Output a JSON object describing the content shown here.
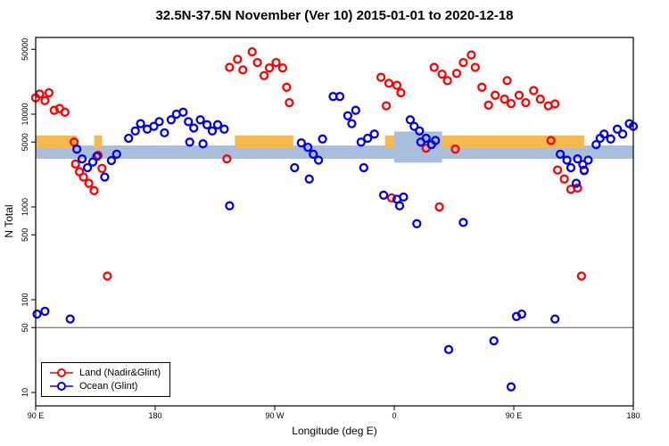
{
  "title": "32.5N-37.5N November (Ver 10)   2015-01-01 to 2020-12-18",
  "legend": {
    "items": [
      {
        "label": "Land (Nadir&Glint)",
        "color": "#ff0000"
      },
      {
        "label": "Ocean (Glint)",
        "color": "#0000ee"
      }
    ]
  },
  "chart_data": {
    "type": "scatter",
    "title": "32.5N-37.5N November (Ver 10)   2015-01-01 to 2020-12-18",
    "xlabel": "Longitude (deg E)",
    "ylabel": "N Total",
    "y_scale": "log10",
    "ylim": [
      10,
      60000
    ],
    "x_axis_span_deg": 450,
    "x_ticks": [
      {
        "pos": 0,
        "label": "90 E"
      },
      {
        "pos": 90,
        "label": "180"
      },
      {
        "pos": 180,
        "label": "90 W"
      },
      {
        "pos": 270,
        "label": "0"
      },
      {
        "pos": 360,
        "label": "90 E"
      },
      {
        "pos": 450,
        "label": "180"
      }
    ],
    "y_ticks": [
      {
        "value": 10,
        "label": "10"
      },
      {
        "value": 50,
        "label": "50"
      },
      {
        "value": 100,
        "label": "100"
      },
      {
        "value": 500,
        "label": "500"
      },
      {
        "value": 1000,
        "label": "1000"
      },
      {
        "value": 5000,
        "label": "5000"
      },
      {
        "value": 10000,
        "label": "10000"
      },
      {
        "value": 50000,
        "label": "50000"
      }
    ],
    "hline": 50,
    "bands": {
      "land_color": "#f5b94e",
      "ocean_color": "#a9bedc",
      "land_n_range": [
        4300,
        5900
      ],
      "ocean_n_range": [
        3300,
        4600
      ],
      "ocean_full_width": true,
      "land_segments_deg": [
        [
          0,
          31
        ],
        [
          44,
          50
        ],
        [
          150,
          194
        ],
        [
          263,
          270
        ],
        [
          306,
          413
        ]
      ],
      "ocean_blob_segment_deg": [
        270,
        306
      ],
      "ocean_blob_n_range": [
        3000,
        6500
      ]
    },
    "series": [
      {
        "name": "Land (Nadir&Glint)",
        "color": "#ff0000",
        "points": [
          [
            0,
            15000
          ],
          [
            3,
            16500
          ],
          [
            7,
            14000
          ],
          [
            10,
            17000
          ],
          [
            14,
            11000
          ],
          [
            18,
            11500
          ],
          [
            22,
            10500
          ],
          [
            29,
            5000
          ],
          [
            30,
            2900
          ],
          [
            33,
            2400
          ],
          [
            36,
            2100
          ],
          [
            40,
            1800
          ],
          [
            44,
            1500
          ],
          [
            47,
            3600
          ],
          [
            50,
            2600
          ],
          [
            54,
            180
          ],
          [
            144,
            3300
          ],
          [
            146,
            32000
          ],
          [
            152,
            39000
          ],
          [
            156,
            30000
          ],
          [
            163,
            47000
          ],
          [
            167,
            36000
          ],
          [
            172,
            26000
          ],
          [
            176,
            31500
          ],
          [
            181,
            36000
          ],
          [
            186,
            31500
          ],
          [
            189,
            19500
          ],
          [
            191,
            13300
          ],
          [
            260,
            25000
          ],
          [
            264,
            12300
          ],
          [
            266,
            21500
          ],
          [
            272,
            20500
          ],
          [
            275,
            17000
          ],
          [
            268,
            1250
          ],
          [
            294,
            4300
          ],
          [
            304,
            1000
          ],
          [
            300,
            32000
          ],
          [
            306,
            27000
          ],
          [
            310,
            23000
          ],
          [
            317,
            27500
          ],
          [
            322,
            36000
          ],
          [
            328,
            43500
          ],
          [
            331,
            32000
          ],
          [
            336,
            19500
          ],
          [
            316,
            4200
          ],
          [
            341,
            12500
          ],
          [
            346,
            16000
          ],
          [
            353,
            14500
          ],
          [
            355,
            23000
          ],
          [
            358,
            13000
          ],
          [
            364,
            16000
          ],
          [
            369,
            13300
          ],
          [
            375,
            18000
          ],
          [
            380,
            14500
          ],
          [
            386,
            12300
          ],
          [
            391,
            12900
          ],
          [
            388,
            5200
          ],
          [
            393,
            2500
          ],
          [
            398,
            2000
          ],
          [
            403,
            1550
          ],
          [
            408,
            1600
          ],
          [
            413,
            2500
          ],
          [
            411,
            180
          ]
        ]
      },
      {
        "name": "Ocean (Glint)",
        "color": "#0000ee",
        "points": [
          [
            1,
            70
          ],
          [
            7,
            75
          ],
          [
            26,
            62
          ],
          [
            31,
            4200
          ],
          [
            35,
            3300
          ],
          [
            39,
            2650
          ],
          [
            43,
            3050
          ],
          [
            46,
            3500
          ],
          [
            52,
            2100
          ],
          [
            57,
            3160
          ],
          [
            61,
            3700
          ],
          [
            70,
            5500
          ],
          [
            75,
            6600
          ],
          [
            79,
            7900
          ],
          [
            84,
            6900
          ],
          [
            89,
            7400
          ],
          [
            93,
            8300
          ],
          [
            97,
            6300
          ],
          [
            102,
            8700
          ],
          [
            106,
            10000
          ],
          [
            111,
            10500
          ],
          [
            115,
            8300
          ],
          [
            119,
            7100
          ],
          [
            124,
            8700
          ],
          [
            129,
            7700
          ],
          [
            133,
            6600
          ],
          [
            137,
            7700
          ],
          [
            142,
            6900
          ],
          [
            116,
            5000
          ],
          [
            126,
            4800
          ],
          [
            146,
            1030
          ],
          [
            195,
            2650
          ],
          [
            200,
            4900
          ],
          [
            205,
            4400
          ],
          [
            209,
            3700
          ],
          [
            213,
            3200
          ],
          [
            206,
            2000
          ],
          [
            216,
            5400
          ],
          [
            224,
            15500
          ],
          [
            229,
            15500
          ],
          [
            235,
            9600
          ],
          [
            238,
            7900
          ],
          [
            241,
            11000
          ],
          [
            245,
            5000
          ],
          [
            250,
            5500
          ],
          [
            247,
            2650
          ],
          [
            255,
            6100
          ],
          [
            262,
            1340
          ],
          [
            272,
            1210
          ],
          [
            277,
            1280
          ],
          [
            274,
            1030
          ],
          [
            282,
            8700
          ],
          [
            285,
            7400
          ],
          [
            289,
            6600
          ],
          [
            290,
            5000
          ],
          [
            294,
            5500
          ],
          [
            298,
            4700
          ],
          [
            301,
            5200
          ],
          [
            287,
            660
          ],
          [
            322,
            680
          ],
          [
            311,
            29
          ],
          [
            345,
            36
          ],
          [
            358,
            11.5
          ],
          [
            362,
            66
          ],
          [
            366,
            70
          ],
          [
            391,
            62
          ],
          [
            395,
            3700
          ],
          [
            400,
            3200
          ],
          [
            403,
            2650
          ],
          [
            408,
            3300
          ],
          [
            412,
            2870
          ],
          [
            416,
            3200
          ],
          [
            413,
            2460
          ],
          [
            407,
            1800
          ],
          [
            422,
            4700
          ],
          [
            425,
            5500
          ],
          [
            428,
            6100
          ],
          [
            433,
            5400
          ],
          [
            438,
            6900
          ],
          [
            442,
            6100
          ],
          [
            447,
            7900
          ],
          [
            450,
            7400
          ]
        ]
      }
    ]
  }
}
